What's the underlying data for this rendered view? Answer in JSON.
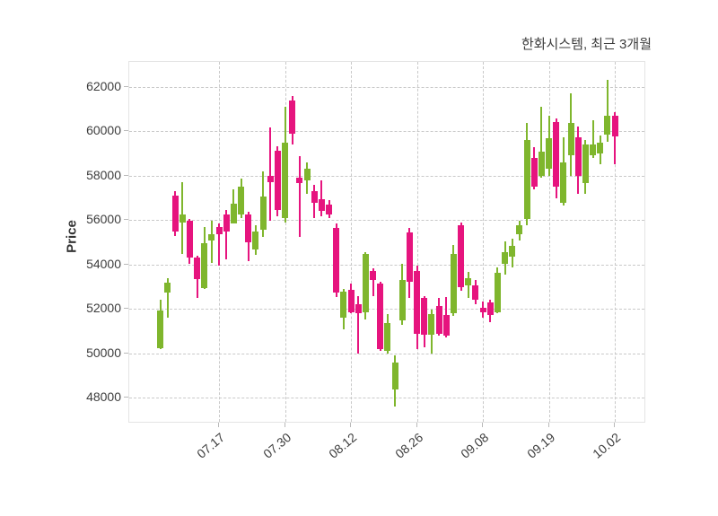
{
  "header": {
    "title": "한화시스템, 최근 3개월"
  },
  "chart_data": {
    "type": "candlestick",
    "title": "한화시스템, 최근 3개월",
    "xlabel": "",
    "ylabel": "Price",
    "grid": true,
    "grid_style": "dashed",
    "ylim": [
      46840,
      63131
    ],
    "y_ticks": [
      48000,
      50000,
      52000,
      54000,
      56000,
      58000,
      60000,
      62000
    ],
    "x_ticks": [
      {
        "index": 8,
        "label": "07.17"
      },
      {
        "index": 17,
        "label": "07.30"
      },
      {
        "index": 26,
        "label": "08.12"
      },
      {
        "index": 35,
        "label": "08.26"
      },
      {
        "index": 44,
        "label": "09.08"
      },
      {
        "index": 53,
        "label": "09.19"
      },
      {
        "index": 62,
        "label": "10.02"
      }
    ],
    "colors": {
      "up": "#7fb62d",
      "down": "#e6147e",
      "grid": "#c9c9c9",
      "axis_text": "#3d3d3d",
      "title_text": "#3c3c3c",
      "background": "#ffffff"
    },
    "ohlc_order": [
      "open",
      "high",
      "low",
      "close"
    ],
    "candles": [
      [
        50250,
        52400,
        50200,
        51950
      ],
      [
        52750,
        53400,
        51600,
        53200
      ],
      [
        57100,
        57290,
        55300,
        55480
      ],
      [
        55910,
        57700,
        54500,
        56250
      ],
      [
        55980,
        56050,
        54030,
        54300
      ],
      [
        54320,
        54400,
        52480,
        53330
      ],
      [
        52950,
        55710,
        52900,
        54970
      ],
      [
        55100,
        55960,
        54090,
        55370
      ],
      [
        55710,
        55840,
        53960,
        55370
      ],
      [
        56250,
        56450,
        54230,
        55510
      ],
      [
        55870,
        57390,
        55840,
        56760
      ],
      [
        56250,
        57870,
        56080,
        57530
      ],
      [
        56250,
        56380,
        54160,
        55000
      ],
      [
        54700,
        55780,
        54430,
        55510
      ],
      [
        55580,
        58200,
        55240,
        57060
      ],
      [
        58000,
        60160,
        55980,
        57730
      ],
      [
        59120,
        59350,
        56180,
        56450
      ],
      [
        56080,
        61100,
        55910,
        59480
      ],
      [
        61400,
        61600,
        59410,
        59890
      ],
      [
        57930,
        58880,
        55240,
        57660
      ],
      [
        57800,
        58610,
        57190,
        58340
      ],
      [
        57330,
        57600,
        56080,
        56790
      ],
      [
        56950,
        57800,
        56180,
        56400
      ],
      [
        56720,
        56900,
        56100,
        56250
      ],
      [
        55640,
        55850,
        52550,
        52750
      ],
      [
        51600,
        52900,
        51100,
        52800
      ],
      [
        52850,
        53150,
        51800,
        51850
      ],
      [
        52200,
        52600,
        50000,
        51800
      ],
      [
        51870,
        54560,
        51540,
        54500
      ],
      [
        53700,
        53830,
        52600,
        53290
      ],
      [
        53150,
        53220,
        50100,
        50200
      ],
      [
        50120,
        51760,
        50000,
        51360
      ],
      [
        48370,
        49900,
        47600,
        49600
      ],
      [
        51470,
        54050,
        51270,
        53290
      ],
      [
        55450,
        55670,
        52480,
        53220
      ],
      [
        53700,
        53960,
        50200,
        50900
      ],
      [
        52480,
        52600,
        50260,
        50860
      ],
      [
        50860,
        51970,
        50000,
        51760
      ],
      [
        52140,
        52480,
        50800,
        50900
      ],
      [
        51740,
        52550,
        50700,
        50820
      ],
      [
        51810,
        54900,
        51700,
        54460
      ],
      [
        55780,
        55910,
        52820,
        52980
      ],
      [
        53080,
        53690,
        52480,
        53380
      ],
      [
        53080,
        53290,
        52210,
        52410
      ],
      [
        52070,
        52340,
        51600,
        51840
      ],
      [
        52300,
        52410,
        51400,
        51740
      ],
      [
        51870,
        53890,
        51800,
        53620
      ],
      [
        54030,
        55050,
        53560,
        54570
      ],
      [
        54360,
        55170,
        53890,
        54830
      ],
      [
        55370,
        55980,
        55100,
        55780
      ],
      [
        56050,
        60400,
        55780,
        59620
      ],
      [
        58800,
        59300,
        57390,
        57530
      ],
      [
        58000,
        61100,
        57930,
        59080
      ],
      [
        58300,
        60690,
        58000,
        59700
      ],
      [
        60420,
        60600,
        56990,
        57530
      ],
      [
        56790,
        59750,
        56650,
        58610
      ],
      [
        58940,
        61700,
        58000,
        60400
      ],
      [
        59750,
        60220,
        57190,
        58000
      ],
      [
        57660,
        59620,
        57190,
        59410
      ],
      [
        58940,
        60490,
        58810,
        59410
      ],
      [
        59010,
        59820,
        58540,
        59500
      ],
      [
        59860,
        62330,
        59550,
        60720
      ],
      [
        60720,
        60860,
        58540,
        59780
      ]
    ]
  }
}
